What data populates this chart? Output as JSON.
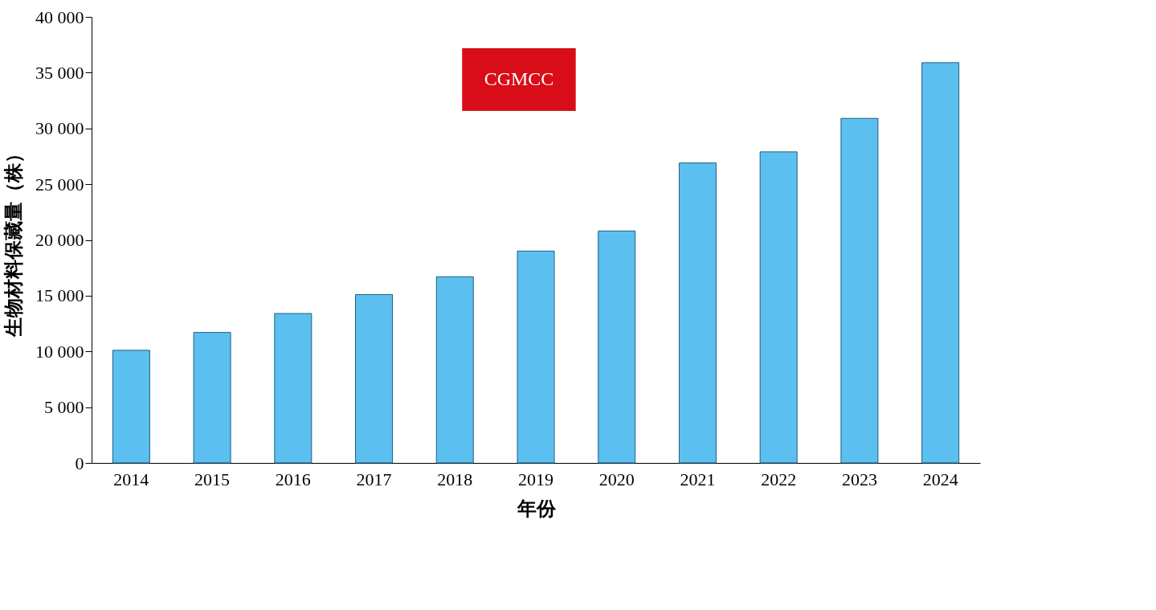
{
  "chart_data": {
    "type": "bar",
    "xlabel": "年份",
    "ylabel": "生物材料保藏量（株）",
    "categories": [
      "2014",
      "2015",
      "2016",
      "2017",
      "2018",
      "2019",
      "2020",
      "2021",
      "2022",
      "2023",
      "2024"
    ],
    "values": [
      10100,
      11700,
      13400,
      15100,
      16700,
      19000,
      20800,
      26900,
      27900,
      30900,
      35900
    ],
    "color": "#5bc0ef",
    "ylim": [
      0,
      40000
    ],
    "yticks": [
      0,
      {
        "value": 5000,
        "label": "5 000"
      },
      {
        "value": 10000,
        "label": "10 000"
      },
      {
        "value": 15000,
        "label": "15 000"
      },
      {
        "value": 20000,
        "label": "20 000"
      },
      {
        "value": 25000,
        "label": "25 000"
      },
      {
        "value": 30000,
        "label": "30 000"
      },
      {
        "value": 35000,
        "label": "35 000"
      },
      {
        "value": 40000,
        "label": "40 000"
      }
    ],
    "annotations": [
      "CGMCC"
    ],
    "grid": false
  }
}
